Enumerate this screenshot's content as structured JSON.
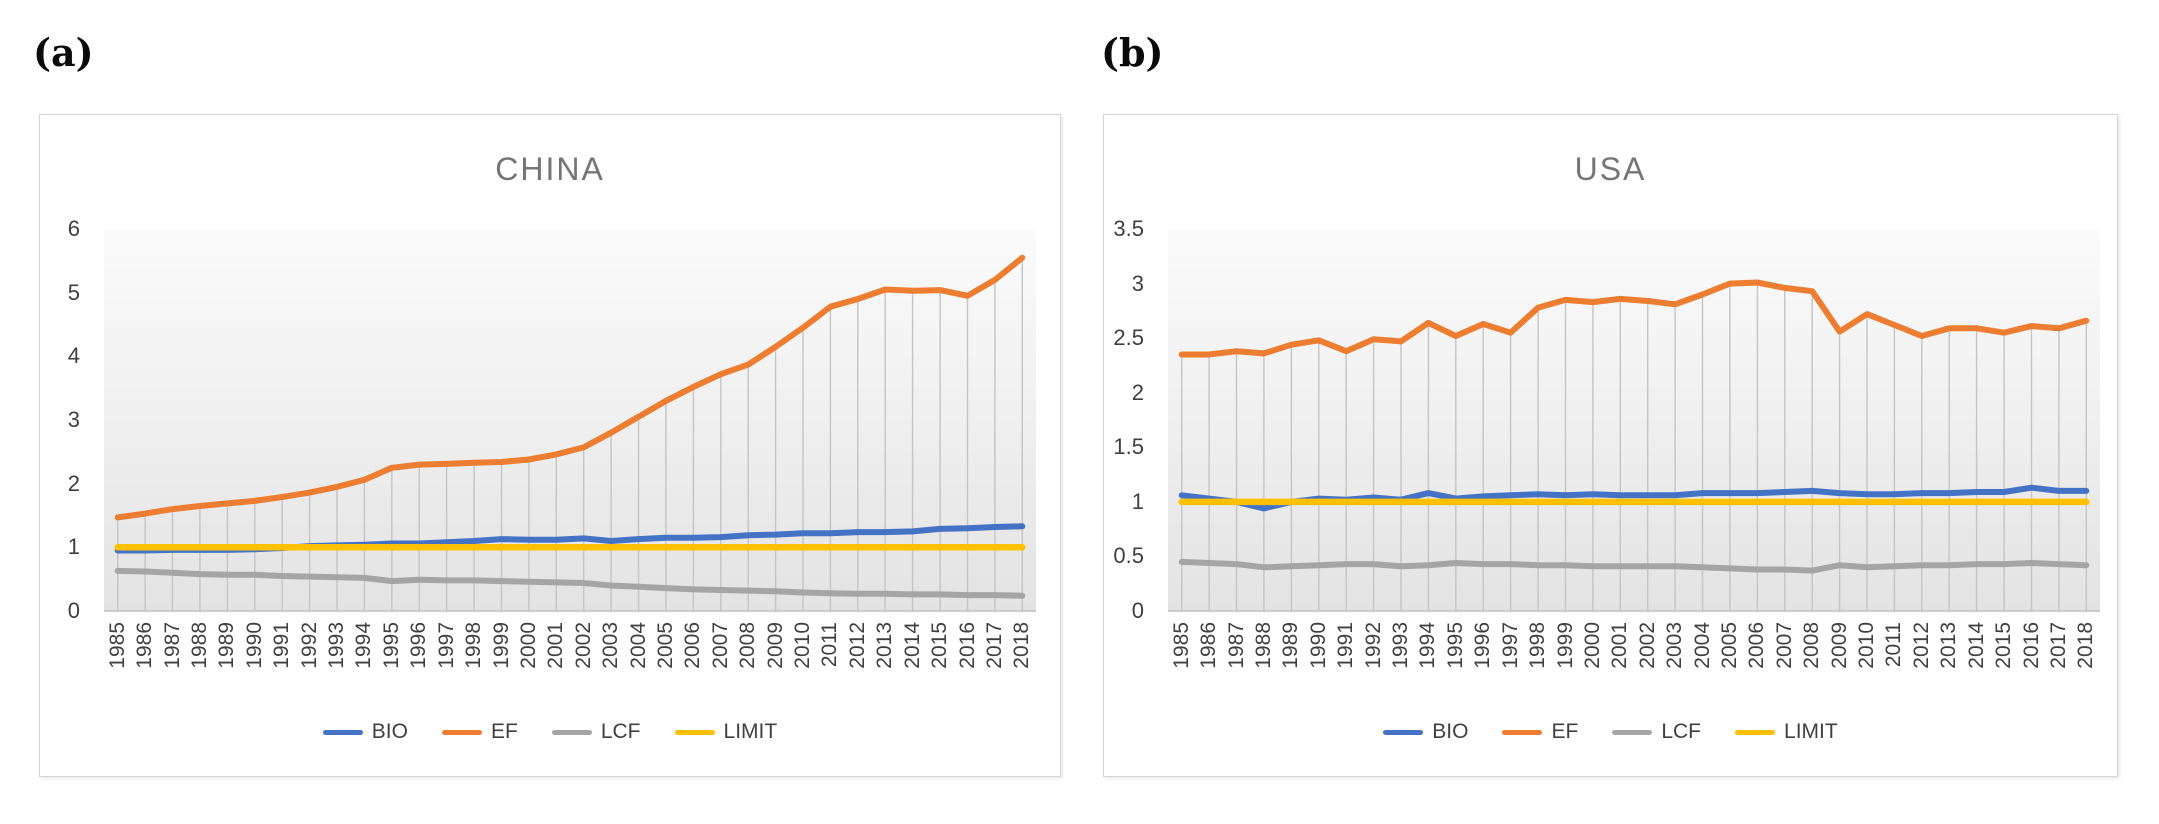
{
  "figure": {
    "panel_a_label": "(a)",
    "panel_b_label": "(b)"
  },
  "colors": {
    "bio": "#4472C4",
    "ef": "#ED7D31",
    "lcf": "#A5A5A5",
    "limit": "#FFC000",
    "title_text": "#757575",
    "axis_text": "#3F3F3F",
    "dropline": "#C4C4C4",
    "axis_line": "#C0C0C0",
    "plot_bg_top": "#FBFBFB",
    "plot_bg_mid": "#EFEFEF",
    "plot_bg_bottom": "#E3E3E3",
    "panel_border": "#D6D6D6"
  },
  "chart_data": [
    {
      "type": "line",
      "title": "CHINA",
      "xlabel": "",
      "ylabel": "",
      "ylim": [
        0,
        6
      ],
      "yticks": [
        "0",
        "1",
        "2",
        "3",
        "4",
        "5",
        "6"
      ],
      "grid": "vertical-droplines",
      "droplines_from": "EF",
      "legend_position": "bottom",
      "x": [
        1985,
        1986,
        1987,
        1988,
        1989,
        1990,
        1991,
        1992,
        1993,
        1994,
        1995,
        1996,
        1997,
        1998,
        1999,
        2000,
        2001,
        2002,
        2003,
        2004,
        2005,
        2006,
        2007,
        2008,
        2009,
        2010,
        2011,
        2012,
        2013,
        2014,
        2015,
        2016,
        2017,
        2018
      ],
      "series": [
        {
          "name": "BIO",
          "color": "#4472C4",
          "values": [
            0.95,
            0.95,
            0.96,
            0.96,
            0.96,
            0.97,
            0.99,
            1.02,
            1.03,
            1.04,
            1.06,
            1.06,
            1.08,
            1.1,
            1.13,
            1.12,
            1.12,
            1.14,
            1.1,
            1.13,
            1.15,
            1.15,
            1.16,
            1.19,
            1.2,
            1.22,
            1.22,
            1.24,
            1.24,
            1.25,
            1.29,
            1.3,
            1.32,
            1.33
          ]
        },
        {
          "name": "EF",
          "color": "#ED7D31",
          "values": [
            1.47,
            1.53,
            1.6,
            1.65,
            1.69,
            1.73,
            1.79,
            1.86,
            1.95,
            2.06,
            2.25,
            2.3,
            2.31,
            2.33,
            2.34,
            2.38,
            2.46,
            2.57,
            2.8,
            3.05,
            3.3,
            3.52,
            3.72,
            3.87,
            4.15,
            4.45,
            4.78,
            4.9,
            5.05,
            5.03,
            5.04,
            4.95,
            5.2,
            5.55
          ]
        },
        {
          "name": "LCF",
          "color": "#A5A5A5",
          "values": [
            0.63,
            0.62,
            0.6,
            0.58,
            0.57,
            0.57,
            0.55,
            0.54,
            0.53,
            0.52,
            0.47,
            0.49,
            0.48,
            0.48,
            0.47,
            0.46,
            0.45,
            0.44,
            0.4,
            0.38,
            0.36,
            0.34,
            0.33,
            0.32,
            0.31,
            0.29,
            0.28,
            0.27,
            0.27,
            0.26,
            0.26,
            0.25,
            0.25,
            0.24
          ]
        },
        {
          "name": "LIMIT",
          "color": "#FFC000",
          "values": [
            1,
            1,
            1,
            1,
            1,
            1,
            1,
            1,
            1,
            1,
            1,
            1,
            1,
            1,
            1,
            1,
            1,
            1,
            1,
            1,
            1,
            1,
            1,
            1,
            1,
            1,
            1,
            1,
            1,
            1,
            1,
            1,
            1,
            1
          ]
        }
      ]
    },
    {
      "type": "line",
      "title": "USA",
      "xlabel": "",
      "ylabel": "",
      "ylim": [
        0,
        3.5
      ],
      "yticks": [
        "0",
        "0.5",
        "1",
        "1.5",
        "2",
        "2.5",
        "3",
        "3.5"
      ],
      "grid": "vertical-droplines",
      "droplines_from": "EF",
      "legend_position": "bottom",
      "x": [
        1985,
        1986,
        1987,
        1988,
        1989,
        1990,
        1991,
        1992,
        1993,
        1994,
        1995,
        1996,
        1997,
        1998,
        1999,
        2000,
        2001,
        2002,
        2003,
        2004,
        2005,
        2006,
        2007,
        2008,
        2009,
        2010,
        2011,
        2012,
        2013,
        2014,
        2015,
        2016,
        2017,
        2018
      ],
      "series": [
        {
          "name": "BIO",
          "color": "#4472C4",
          "values": [
            1.06,
            1.03,
            1.0,
            0.94,
            1.0,
            1.03,
            1.02,
            1.04,
            1.02,
            1.08,
            1.03,
            1.05,
            1.06,
            1.07,
            1.06,
            1.07,
            1.06,
            1.06,
            1.06,
            1.08,
            1.08,
            1.08,
            1.09,
            1.1,
            1.08,
            1.07,
            1.07,
            1.08,
            1.08,
            1.09,
            1.09,
            1.13,
            1.1,
            1.1
          ]
        },
        {
          "name": "EF",
          "color": "#ED7D31",
          "values": [
            2.35,
            2.35,
            2.38,
            2.36,
            2.44,
            2.48,
            2.38,
            2.49,
            2.47,
            2.64,
            2.52,
            2.63,
            2.55,
            2.78,
            2.85,
            2.83,
            2.86,
            2.84,
            2.81,
            2.9,
            3.0,
            3.01,
            2.96,
            2.93,
            2.56,
            2.72,
            2.62,
            2.52,
            2.59,
            2.59,
            2.55,
            2.61,
            2.59,
            2.66
          ]
        },
        {
          "name": "LCF",
          "color": "#A5A5A5",
          "values": [
            0.45,
            0.44,
            0.43,
            0.4,
            0.41,
            0.42,
            0.43,
            0.43,
            0.41,
            0.42,
            0.44,
            0.43,
            0.43,
            0.42,
            0.42,
            0.41,
            0.41,
            0.41,
            0.41,
            0.4,
            0.39,
            0.38,
            0.38,
            0.37,
            0.42,
            0.4,
            0.41,
            0.42,
            0.42,
            0.43,
            0.43,
            0.44,
            0.43,
            0.42
          ]
        },
        {
          "name": "LIMIT",
          "color": "#FFC000",
          "values": [
            1,
            1,
            1,
            1,
            1,
            1,
            1,
            1,
            1,
            1,
            1,
            1,
            1,
            1,
            1,
            1,
            1,
            1,
            1,
            1,
            1,
            1,
            1,
            1,
            1,
            1,
            1,
            1,
            1,
            1,
            1,
            1,
            1,
            1
          ]
        }
      ]
    }
  ]
}
